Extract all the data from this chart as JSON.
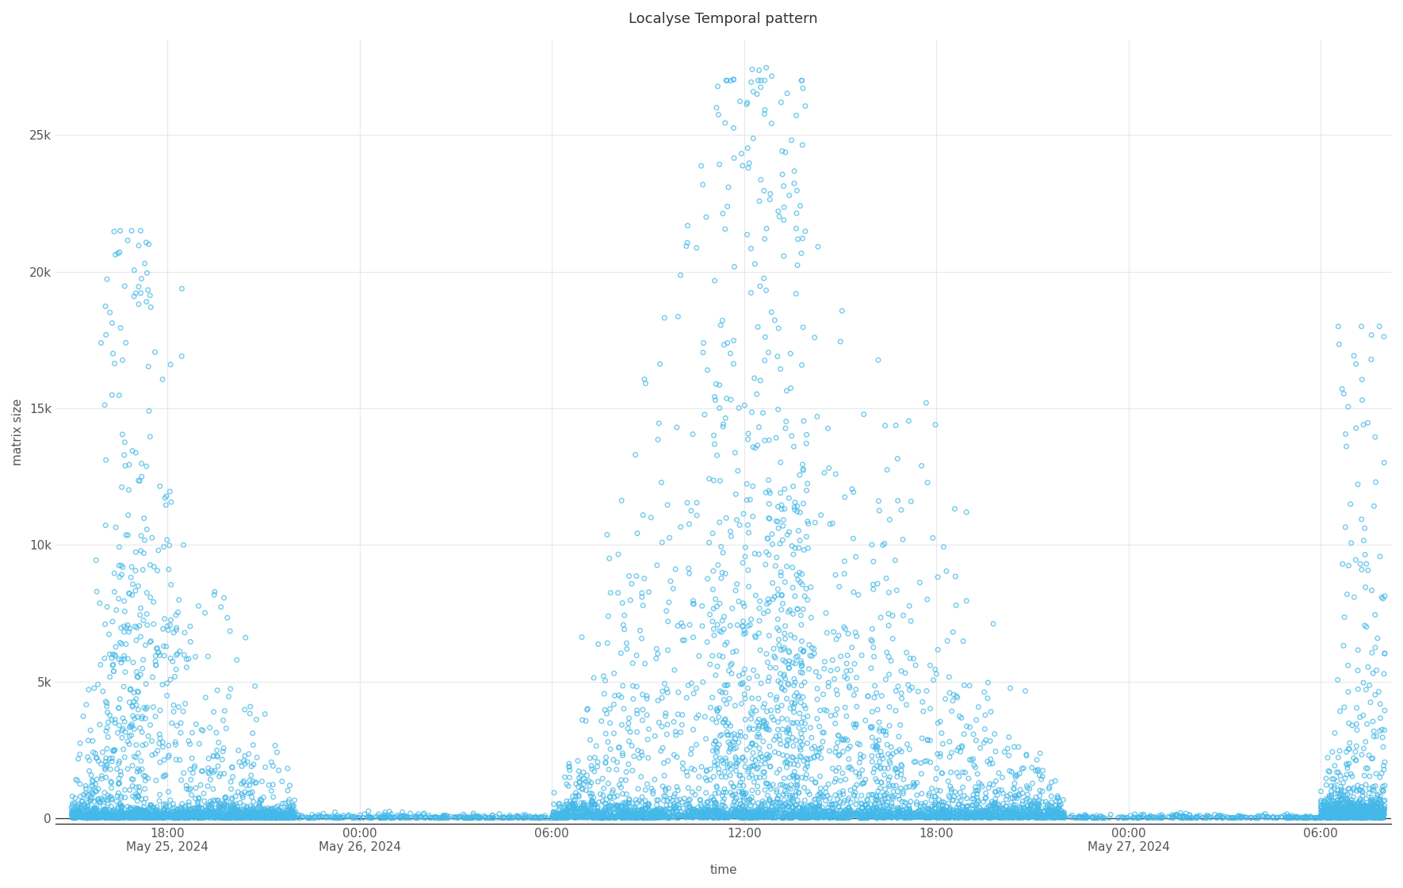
{
  "title": "Localyse Temporal pattern",
  "xlabel": "time",
  "ylabel": "matrix size",
  "marker_color": "#44b8e8",
  "marker_face_color": "none",
  "marker_size": 4,
  "marker_linewidth": 1.0,
  "ylim": [
    -200,
    28500
  ],
  "background_color": "#ffffff",
  "grid_color": "#e8e8e8",
  "tick_label_color": "#555555",
  "title_color": "#333333",
  "ytick_values": [
    0,
    5000,
    10000,
    15000,
    20000,
    25000
  ],
  "ytick_labels": [
    "0",
    "5k",
    "10k",
    "15k",
    "20k",
    "25k"
  ]
}
